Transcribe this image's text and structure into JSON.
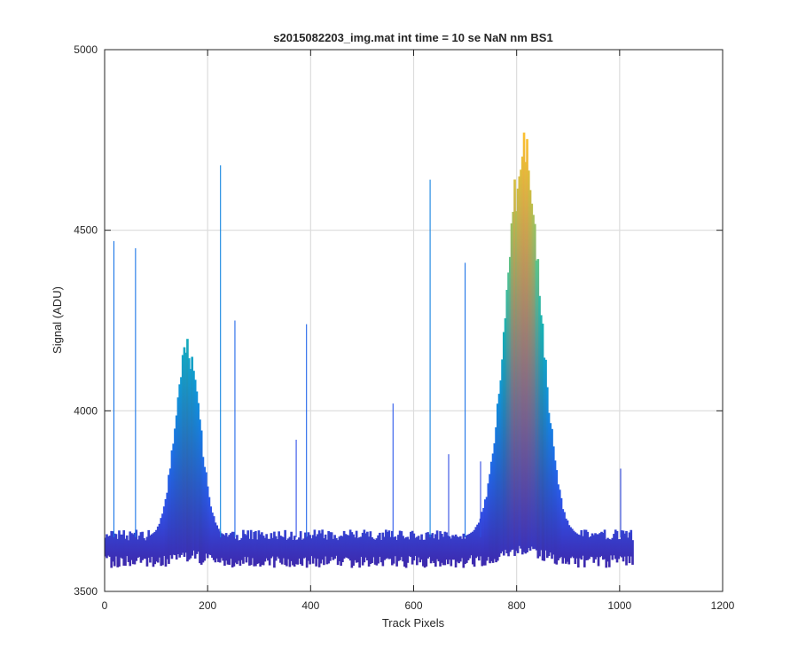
{
  "chart_data": {
    "type": "line",
    "title": "s2015082203_img.mat int time = 10 se  NaN nm BS1",
    "xlabel": "Track Pixels",
    "ylabel": "Signal (ADU)",
    "xlim": [
      0,
      1200
    ],
    "ylim": [
      3500,
      5000
    ],
    "xticks": [
      0,
      200,
      400,
      600,
      800,
      1000,
      1200
    ],
    "yticks": [
      3500,
      4000,
      4500,
      5000
    ],
    "xtick_labels": [
      "0",
      "200",
      "400",
      "600",
      "800",
      "1000",
      "1200"
    ],
    "ytick_labels": [
      "3500",
      "4000",
      "4500",
      "5000"
    ],
    "grid": true,
    "legend": "none",
    "colormap": [
      "#3e26a8",
      "#2f52ea",
      "#1a73e8",
      "#0f98d7",
      "#16b3b3",
      "#5cc48a",
      "#c5bd45",
      "#fbc030"
    ],
    "baseline": {
      "x_range": [
        0,
        1024
      ],
      "low": 3600,
      "high": 3650
    },
    "peaks": [
      {
        "center": 160,
        "width": 24,
        "height": 4190
      },
      {
        "center": 812,
        "width": 34,
        "height": 4760
      }
    ],
    "spikes": [
      {
        "x": 18,
        "y": 4470
      },
      {
        "x": 60,
        "y": 4450
      },
      {
        "x": 225,
        "y": 4680
      },
      {
        "x": 253,
        "y": 4250
      },
      {
        "x": 372,
        "y": 3920
      },
      {
        "x": 392,
        "y": 4240
      },
      {
        "x": 560,
        "y": 4020
      },
      {
        "x": 632,
        "y": 4640
      },
      {
        "x": 668,
        "y": 3880
      },
      {
        "x": 700,
        "y": 4410
      },
      {
        "x": 730,
        "y": 3860
      },
      {
        "x": 1002,
        "y": 3840
      }
    ]
  }
}
